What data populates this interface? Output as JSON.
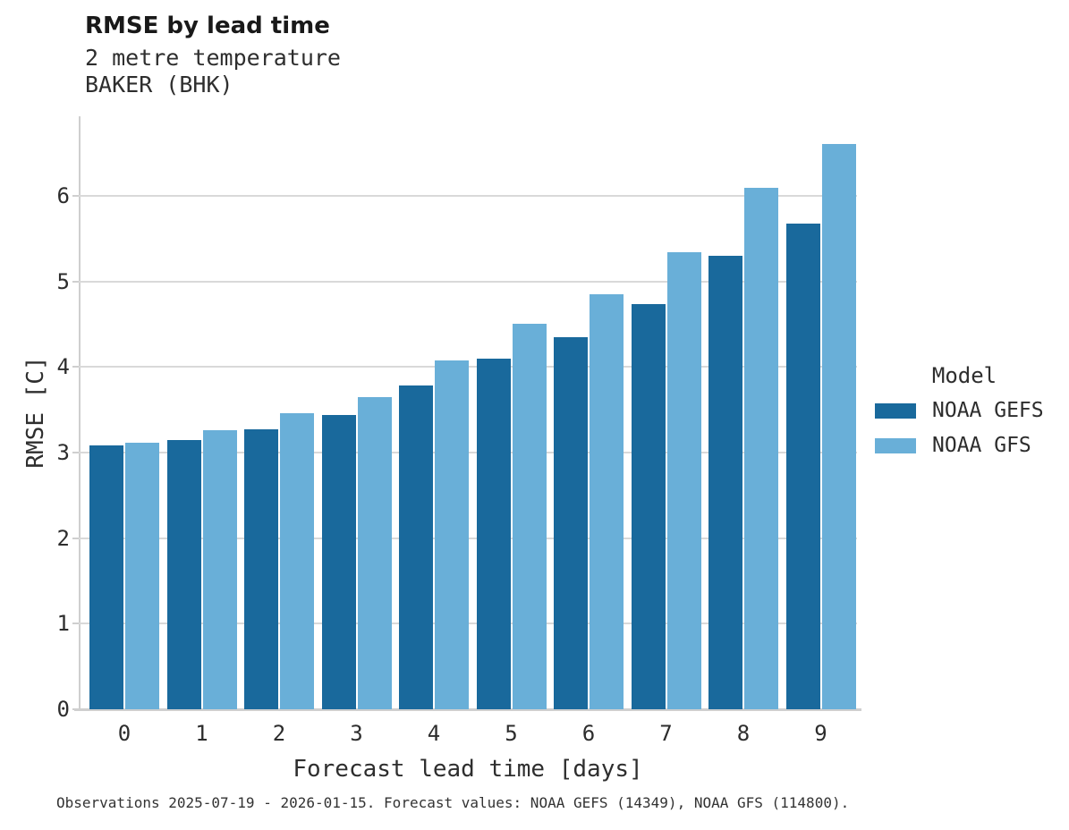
{
  "header": {
    "title": "RMSE by lead time",
    "subtitle_line1": "2 metre temperature",
    "subtitle_line2": "BAKER (BHK)"
  },
  "footer": {
    "note": "Observations 2025-07-19 - 2026-01-15. Forecast values: NOAA GEFS (14349), NOAA GFS (114800)."
  },
  "colors": {
    "series_dark_blue": "#19699C",
    "series_light_blue": "#69AFD8",
    "gridline": "#d9d9d9",
    "axis_spine": "#cfcfcf",
    "title_text": "#191919",
    "body_text": "#2d2d2d"
  },
  "chart_data": {
    "type": "bar",
    "title": "RMSE by lead time",
    "subtitle": [
      "2 metre temperature",
      "BAKER (BHK)"
    ],
    "xlabel": "Forecast lead time [days]",
    "ylabel": "RMSE [C]",
    "categories": [
      "0",
      "1",
      "2",
      "3",
      "4",
      "5",
      "6",
      "7",
      "8",
      "9"
    ],
    "series": [
      {
        "name": "NOAA GEFS",
        "color": "#19699C",
        "values": [
          3.08,
          3.15,
          3.27,
          3.44,
          3.78,
          4.1,
          4.35,
          4.74,
          5.3,
          5.68
        ]
      },
      {
        "name": "NOAA GFS",
        "color": "#69AFD8",
        "values": [
          3.11,
          3.26,
          3.46,
          3.65,
          4.08,
          4.51,
          4.85,
          5.34,
          6.09,
          6.61
        ]
      }
    ],
    "ylim": [
      0,
      6.93
    ],
    "yticks": [
      0,
      1,
      2,
      3,
      4,
      5,
      6
    ],
    "grid": true,
    "legend": {
      "title": "Model",
      "position": "right"
    }
  }
}
